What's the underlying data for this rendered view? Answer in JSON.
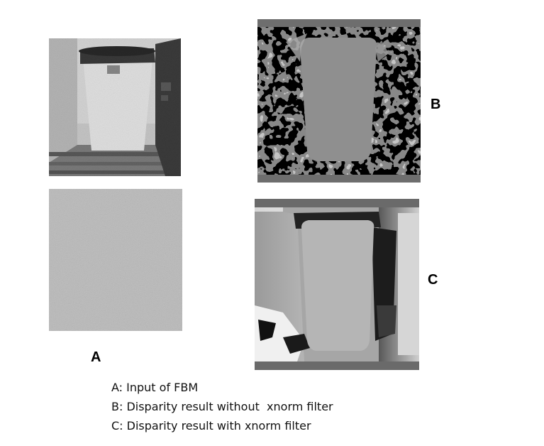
{
  "panels": {
    "a_label": "A",
    "b_label": "B",
    "c_label": "C"
  },
  "legend": [
    "A: Input of FBM",
    "B: Disparity result without  xnorm filter",
    "C: Disparity result with xnorm filter"
  ]
}
